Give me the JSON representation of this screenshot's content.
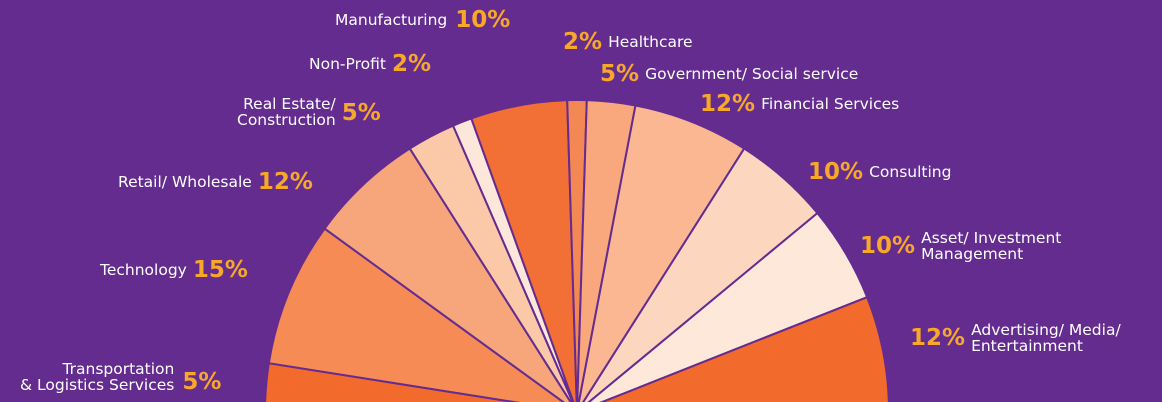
{
  "chart_data": {
    "type": "pie",
    "subtype": "half-pie",
    "center_label": "",
    "slices": [
      {
        "key": "transport",
        "category": "Transportation\n& Logistics Services",
        "value": 5,
        "label": "5%",
        "color": "#f26a2c"
      },
      {
        "key": "technology",
        "category": "Technology",
        "value": 15,
        "label": "15%",
        "color": "#f68b55"
      },
      {
        "key": "retail",
        "category": "Retail/ Wholesale",
        "value": 12,
        "label": "12%",
        "color": "#f7a57a"
      },
      {
        "key": "realestate",
        "category": "Real Estate/\nConstruction",
        "value": 5,
        "label": "5%",
        "color": "#fbc9a8"
      },
      {
        "key": "nonprofit",
        "category": "Non-Profit",
        "value": 2,
        "label": "2%",
        "color": "#fde7da"
      },
      {
        "key": "manufacturing",
        "category": "Manufacturing",
        "value": 10,
        "label": "10%",
        "color": "#f26f35"
      },
      {
        "key": "healthcare",
        "category": "Healthcare",
        "value": 2,
        "label": "2%",
        "color": "#f48855"
      },
      {
        "key": "government",
        "category": "Government/ Social service",
        "value": 5,
        "label": "5%",
        "color": "#f8a87c"
      },
      {
        "key": "financial",
        "category": "Financial Services",
        "value": 12,
        "label": "12%",
        "color": "#fbb792"
      },
      {
        "key": "consulting",
        "category": "Consulting",
        "value": 10,
        "label": "10%",
        "color": "#fcd6bf"
      },
      {
        "key": "asset",
        "category": "Asset/ Investment\nManagement",
        "value": 10,
        "label": "10%",
        "color": "#fde8da"
      },
      {
        "key": "advertising",
        "category": "Advertising/ Media/\nEntertainment",
        "value": 12,
        "label": "12%",
        "color": "#f26a2c"
      }
    ]
  },
  "colors": {
    "background": "#652c90",
    "label_text": "#ffffff",
    "percent_text": "#f7a82a"
  }
}
